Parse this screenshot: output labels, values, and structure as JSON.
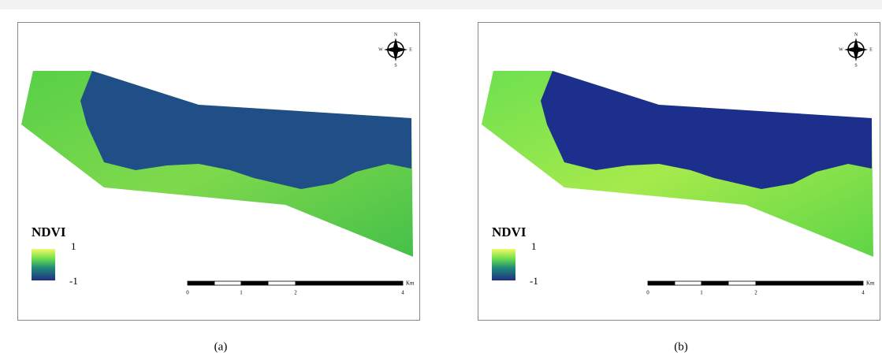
{
  "panels": [
    {
      "caption": "(a)",
      "legend": {
        "title": "NDVI",
        "max": "1",
        "min": "-1"
      },
      "compass": {
        "n": "N",
        "e": "E",
        "s": "S",
        "w": "W"
      },
      "scale_bar": {
        "labels": [
          "0",
          "1",
          "2",
          "4"
        ],
        "unit": "Km"
      }
    },
    {
      "caption": "(b)",
      "legend": {
        "title": "NDVI",
        "max": "1",
        "min": "-1"
      },
      "compass": {
        "n": "N",
        "e": "E",
        "s": "S",
        "w": "W"
      },
      "scale_bar": {
        "labels": [
          "0",
          "1",
          "2",
          "4"
        ],
        "unit": "Km"
      }
    }
  ]
}
